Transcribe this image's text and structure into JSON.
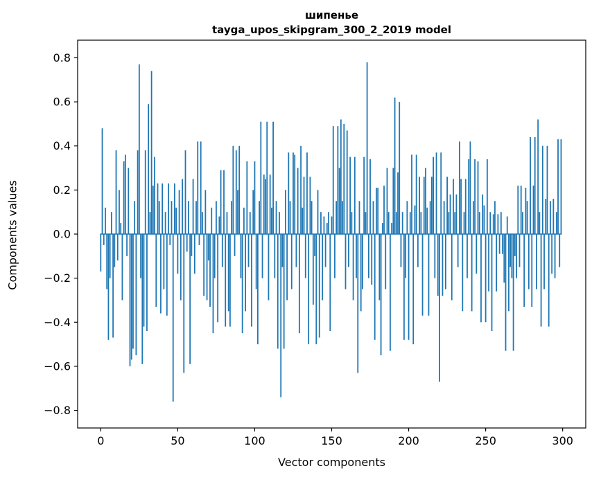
{
  "chart_data": {
    "type": "bar",
    "title": "шипенье",
    "subtitle": "tayga_upos_skipgram_300_2_2019 model",
    "xlabel": "Vector components",
    "ylabel": "Components values",
    "bar_color": "#1f77b4",
    "xlim": [
      -15,
      315
    ],
    "ylim": [
      -0.88,
      0.88
    ],
    "xticks": [
      0,
      50,
      100,
      150,
      200,
      250,
      300
    ],
    "xtick_labels": [
      "0",
      "50",
      "100",
      "150",
      "200",
      "250",
      "300"
    ],
    "yticks": [
      -0.8,
      -0.6,
      -0.4,
      -0.2,
      0.0,
      0.2,
      0.4,
      0.6,
      0.8
    ],
    "ytick_labels": [
      "−0.8",
      "−0.6",
      "−0.4",
      "−0.2",
      "0.0",
      "0.2",
      "0.4",
      "0.6",
      "0.8"
    ],
    "grid": false,
    "legend": "none",
    "values": [
      -0.17,
      0.48,
      -0.05,
      0.12,
      -0.25,
      -0.48,
      -0.2,
      0.1,
      -0.47,
      -0.15,
      0.38,
      -0.12,
      0.2,
      0.05,
      -0.3,
      0.33,
      0.36,
      -0.1,
      0.3,
      -0.6,
      -0.57,
      -0.52,
      0.15,
      -0.55,
      0.38,
      0.77,
      -0.2,
      -0.59,
      -0.42,
      0.38,
      -0.44,
      0.59,
      0.1,
      0.74,
      0.22,
      0.35,
      -0.33,
      0.23,
      0.15,
      -0.36,
      0.23,
      -0.25,
      0.1,
      -0.37,
      0.23,
      -0.05,
      0.15,
      -0.76,
      0.23,
      0.12,
      -0.18,
      0.2,
      -0.3,
      0.25,
      -0.63,
      0.38,
      -0.08,
      0.15,
      -0.59,
      -0.1,
      0.25,
      -0.18,
      0.15,
      0.42,
      -0.05,
      0.42,
      0.1,
      -0.28,
      0.2,
      -0.3,
      -0.12,
      -0.33,
      0.12,
      -0.45,
      -0.2,
      0.15,
      -0.4,
      0.08,
      0.29,
      -0.15,
      0.29,
      -0.42,
      0.1,
      -0.35,
      -0.42,
      0.15,
      0.4,
      -0.1,
      0.38,
      0.2,
      0.4,
      -0.2,
      -0.45,
      0.12,
      -0.35,
      0.33,
      -0.15,
      0.1,
      -0.42,
      0.2,
      0.33,
      -0.25,
      -0.5,
      0.15,
      0.51,
      -0.2,
      0.27,
      0.25,
      0.51,
      -0.3,
      0.27,
      0.12,
      0.51,
      -0.2,
      0.15,
      -0.52,
      0.1,
      -0.74,
      -0.15,
      -0.52,
      0.2,
      -0.3,
      0.37,
      0.15,
      -0.25,
      0.37,
      0.36,
      -0.15,
      0.3,
      -0.45,
      0.4,
      0.12,
      0.26,
      -0.2,
      0.37,
      -0.5,
      0.26,
      0.15,
      -0.32,
      -0.1,
      -0.5,
      0.2,
      -0.47,
      0.1,
      -0.3,
      0.08,
      -0.15,
      0.05,
      0.1,
      -0.44,
      0.08,
      0.49,
      -0.2,
      0.15,
      0.49,
      0.3,
      0.52,
      0.15,
      0.5,
      -0.25,
      0.47,
      -0.15,
      0.35,
      0.1,
      -0.3,
      0.35,
      -0.2,
      -0.63,
      0.15,
      -0.35,
      -0.25,
      0.35,
      0.1,
      0.78,
      -0.2,
      0.34,
      -0.23,
      0.15,
      -0.48,
      0.21,
      0.21,
      -0.3,
      -0.55,
      0.05,
      0.22,
      -0.25,
      0.3,
      0.1,
      -0.53,
      0.05,
      0.3,
      0.62,
      0.1,
      0.28,
      0.6,
      -0.15,
      0.1,
      -0.48,
      -0.2,
      0.15,
      -0.48,
      0.1,
      0.36,
      -0.5,
      0.13,
      0.36,
      -0.15,
      0.26,
      0.1,
      -0.37,
      0.26,
      0.3,
      0.12,
      -0.37,
      0.15,
      0.26,
      0.35,
      -0.2,
      0.37,
      -0.28,
      -0.67,
      0.37,
      -0.28,
      0.15,
      -0.25,
      0.26,
      0.1,
      0.18,
      -0.3,
      0.25,
      0.1,
      0.18,
      -0.15,
      0.42,
      0.25,
      -0.35,
      0.1,
      0.25,
      -0.2,
      0.34,
      0.42,
      -0.35,
      0.15,
      0.34,
      -0.18,
      0.33,
      0.1,
      -0.4,
      0.18,
      0.13,
      -0.4,
      0.34,
      -0.26,
      0.1,
      -0.44,
      0.09,
      0.15,
      -0.26,
      0.09,
      -0.09,
      0.1,
      -0.09,
      -0.22,
      -0.53,
      0.08,
      -0.35,
      -0.15,
      -0.2,
      -0.53,
      -0.1,
      -0.2,
      0.22,
      -0.15,
      0.22,
      0.1,
      -0.33,
      0.21,
      0.15,
      -0.25,
      0.44,
      -0.33,
      0.22,
      0.44,
      -0.25,
      0.52,
      0.1,
      -0.42,
      0.4,
      -0.25,
      0.16,
      0.4,
      -0.42,
      0.15,
      -0.18,
      0.16,
      -0.2,
      0.1,
      0.43,
      -0.15,
      0.43
    ]
  }
}
